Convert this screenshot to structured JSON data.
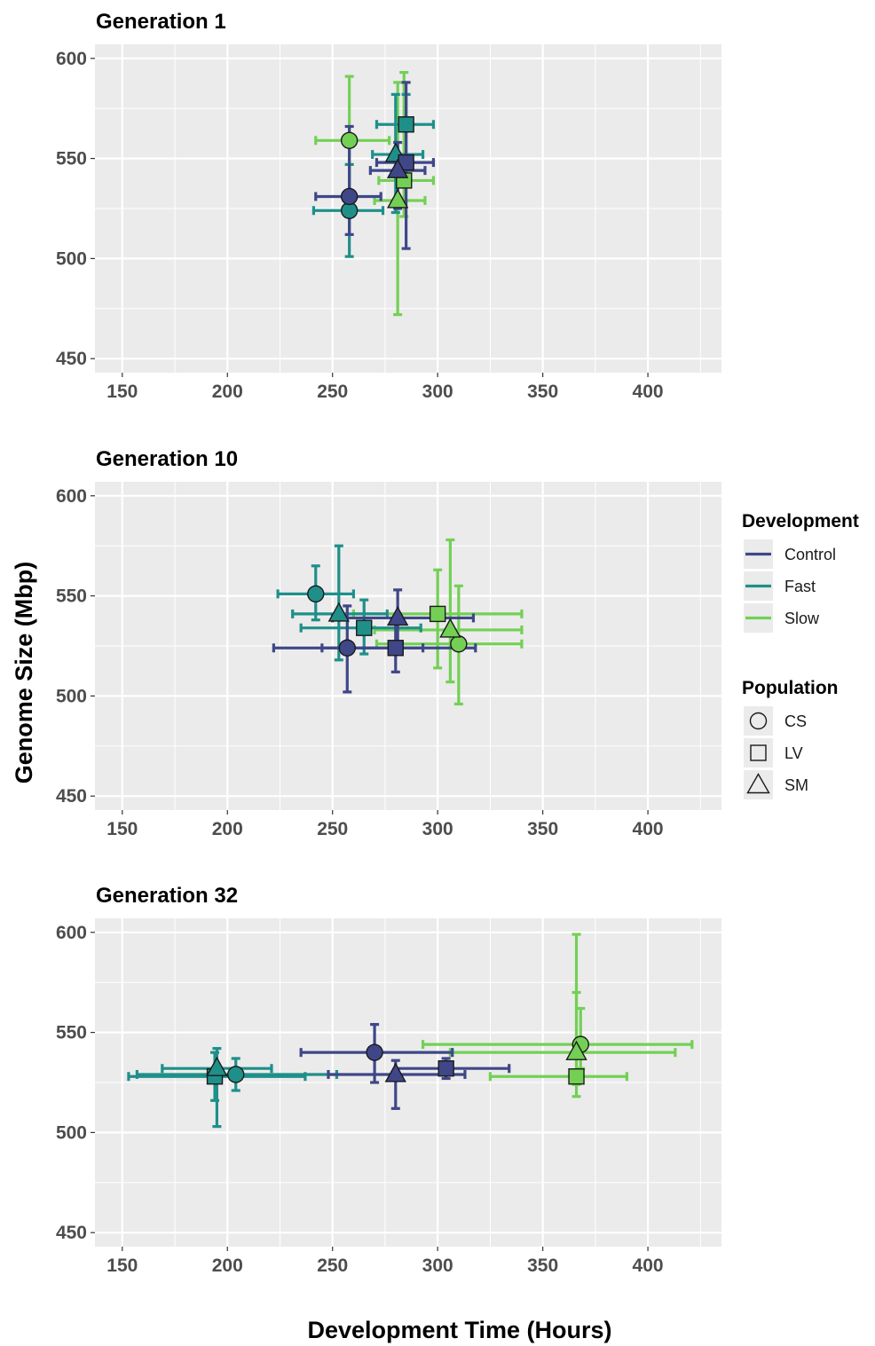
{
  "chart_data": {
    "type": "scatter",
    "xlabel": "Development Time (Hours)",
    "ylabel": "Genome Size (Mbp)",
    "xlim": [
      137,
      435
    ],
    "ylim": [
      443,
      607
    ],
    "x_ticks": [
      "150",
      "200",
      "250",
      "300",
      "350",
      "400"
    ],
    "y_ticks": [
      "450",
      "500",
      "550",
      "600"
    ],
    "grid": true,
    "error_bars": true,
    "legend_position": "right",
    "colors": {
      "Control": "#3f4788",
      "Fast": "#1f8f8a",
      "Slow": "#73d055"
    },
    "legend": {
      "development": {
        "title": "Development",
        "items": [
          "Control",
          "Fast",
          "Slow"
        ]
      },
      "population": {
        "title": "Population",
        "items": [
          "CS",
          "LV",
          "SM"
        ]
      }
    },
    "panels": [
      {
        "title": "Generation 1",
        "points": [
          {
            "development": "Control",
            "population": "CS",
            "x": 258,
            "y": 531,
            "x_err": [
              242,
              273
            ],
            "y_err": [
              512,
              566
            ]
          },
          {
            "development": "Control",
            "population": "LV",
            "x": 285,
            "y": 548,
            "x_err": [
              271,
              298
            ],
            "y_err": [
              505,
              588
            ]
          },
          {
            "development": "Control",
            "population": "SM",
            "x": 281,
            "y": 544,
            "x_err": [
              268,
              294
            ],
            "y_err": [
              525,
              558
            ]
          },
          {
            "development": "Fast",
            "population": "CS",
            "x": 258,
            "y": 524,
            "x_err": [
              241,
              274
            ],
            "y_err": [
              501,
              547
            ]
          },
          {
            "development": "Fast",
            "population": "LV",
            "x": 285,
            "y": 567,
            "x_err": [
              271,
              298
            ],
            "y_err": [
              538,
              582
            ]
          },
          {
            "development": "Fast",
            "population": "SM",
            "x": 280,
            "y": 552,
            "x_err": [
              269,
              293
            ],
            "y_err": [
              523,
              582
            ]
          },
          {
            "development": "Slow",
            "population": "CS",
            "x": 258,
            "y": 559,
            "x_err": [
              242,
              277
            ],
            "y_err": [
              532,
              591
            ]
          },
          {
            "development": "Slow",
            "population": "LV",
            "x": 284,
            "y": 539,
            "x_err": [
              272,
              298
            ],
            "y_err": [
              521,
              593
            ]
          },
          {
            "development": "Slow",
            "population": "SM",
            "x": 281,
            "y": 529,
            "x_err": [
              270,
              294
            ],
            "y_err": [
              472,
              588
            ]
          }
        ]
      },
      {
        "title": "Generation 10",
        "points": [
          {
            "development": "Control",
            "population": "CS",
            "x": 257,
            "y": 524,
            "x_err": [
              222,
              293
            ],
            "y_err": [
              502,
              545
            ]
          },
          {
            "development": "Control",
            "population": "LV",
            "x": 280,
            "y": 524,
            "x_err": [
              245,
              318
            ],
            "y_err": [
              512,
              537
            ]
          },
          {
            "development": "Control",
            "population": "SM",
            "x": 281,
            "y": 539,
            "x_err": [
              250,
              317
            ],
            "y_err": [
              526,
              553
            ]
          },
          {
            "development": "Fast",
            "population": "CS",
            "x": 242,
            "y": 551,
            "x_err": [
              224,
              260
            ],
            "y_err": [
              538,
              565
            ]
          },
          {
            "development": "Fast",
            "population": "LV",
            "x": 265,
            "y": 534,
            "x_err": [
              235,
              292
            ],
            "y_err": [
              521,
              548
            ]
          },
          {
            "development": "Fast",
            "population": "SM",
            "x": 253,
            "y": 541,
            "x_err": [
              231,
              276
            ],
            "y_err": [
              518,
              575
            ]
          },
          {
            "development": "Slow",
            "population": "CS",
            "x": 310,
            "y": 526,
            "x_err": [
              271,
              340
            ],
            "y_err": [
              496,
              555
            ]
          },
          {
            "development": "Slow",
            "population": "LV",
            "x": 300,
            "y": 541,
            "x_err": [
              260,
              340
            ],
            "y_err": [
              514,
              563
            ]
          },
          {
            "development": "Slow",
            "population": "SM",
            "x": 306,
            "y": 533,
            "x_err": [
              270,
              340
            ],
            "y_err": [
              507,
              578
            ]
          }
        ]
      },
      {
        "title": "Generation 32",
        "points": [
          {
            "development": "Control",
            "population": "CS",
            "x": 270,
            "y": 540,
            "x_err": [
              235,
              307
            ],
            "y_err": [
              525,
              554
            ]
          },
          {
            "development": "Control",
            "population": "LV",
            "x": 304,
            "y": 532,
            "x_err": [
              280,
              334
            ],
            "y_err": [
              527,
              537
            ]
          },
          {
            "development": "Control",
            "population": "SM",
            "x": 280,
            "y": 529,
            "x_err": [
              248,
              313
            ],
            "y_err": [
              512,
              536
            ]
          },
          {
            "development": "Fast",
            "population": "CS",
            "x": 204,
            "y": 529,
            "x_err": [
              157,
              252
            ],
            "y_err": [
              521,
              537
            ]
          },
          {
            "development": "Fast",
            "population": "LV",
            "x": 194,
            "y": 528,
            "x_err": [
              153,
              237
            ],
            "y_err": [
              516,
              540
            ]
          },
          {
            "development": "Fast",
            "population": "SM",
            "x": 195,
            "y": 532,
            "x_err": [
              169,
              221
            ],
            "y_err": [
              503,
              542
            ]
          },
          {
            "development": "Slow",
            "population": "CS",
            "x": 368,
            "y": 544,
            "x_err": [
              293,
              421
            ],
            "y_err": [
              532,
              562
            ]
          },
          {
            "development": "Slow",
            "population": "LV",
            "x": 366,
            "y": 528,
            "x_err": [
              325,
              390
            ],
            "y_err": [
              518,
              570
            ]
          },
          {
            "development": "Slow",
            "population": "SM",
            "x": 366,
            "y": 540,
            "x_err": [
              306,
              413
            ],
            "y_err": [
              524,
              599
            ]
          }
        ]
      }
    ]
  }
}
